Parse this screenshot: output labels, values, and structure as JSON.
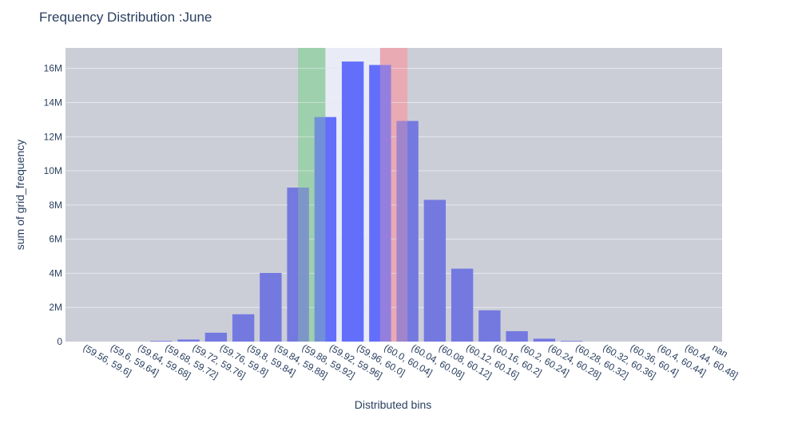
{
  "chart_data": {
    "type": "bar",
    "title": "Frequency Distribution :June",
    "xlabel": "Distributed bins",
    "ylabel": "sum of grid_frequency",
    "ylim": [
      0,
      17200000
    ],
    "yticks": [
      0,
      2000000,
      4000000,
      6000000,
      8000000,
      10000000,
      12000000,
      14000000,
      16000000
    ],
    "ytick_labels": [
      "0",
      "2M",
      "4M",
      "6M",
      "8M",
      "10M",
      "12M",
      "14M",
      "16M"
    ],
    "grid": true,
    "categories": [
      "(59.56, 59.6]",
      "(59.6, 59.64]",
      "(59.64, 59.68]",
      "(59.68, 59.72]",
      "(59.72, 59.76]",
      "(59.76, 59.8]",
      "(59.8, 59.84]",
      "(59.84, 59.88]",
      "(59.88, 59.92]",
      "(59.92, 59.96]",
      "(59.96, 60.0]",
      "(60.0, 60.04]",
      "(60.04, 60.08]",
      "(60.08, 60.12]",
      "(60.12, 60.16]",
      "(60.16, 60.2]",
      "(60.2, 60.24]",
      "(60.24, 60.28]",
      "(60.28, 60.32]",
      "(60.32, 60.36]",
      "(60.36, 60.4]",
      "(60.4, 60.44]",
      "(60.44, 60.48]",
      "nan"
    ],
    "values": [
      0,
      0,
      0,
      40000,
      120000,
      520000,
      1600000,
      4020000,
      9020000,
      13150000,
      16400000,
      16200000,
      12920000,
      8300000,
      4270000,
      1830000,
      610000,
      170000,
      40000,
      0,
      0,
      0,
      0,
      0
    ],
    "bar_colors": {
      "normal": "#6f74e0",
      "center": "#636efa"
    },
    "center_bins": [
      "(59.92, 59.96]",
      "(59.96, 60.0]",
      "(60.0, 60.04]"
    ],
    "highlight_bands": [
      {
        "from_bin": 8.5,
        "to_bin": 9.5,
        "color": "#8fd19e",
        "opacity": 0.6
      },
      {
        "from_bin": 9.5,
        "to_bin": 11.5,
        "color": "#eef1fb",
        "opacity": 0.85
      },
      {
        "from_bin": 11.5,
        "to_bin": 12.5,
        "color": "#f2a0a8",
        "opacity": 0.65
      }
    ],
    "plot_bg": "#cbced7",
    "gridline_color": "#e6e8ee"
  }
}
